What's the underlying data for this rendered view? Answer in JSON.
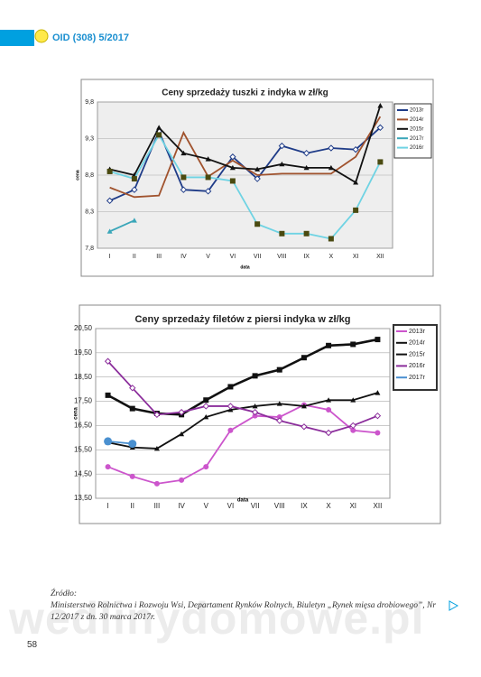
{
  "header": {
    "title": "OID (308) 5/2017"
  },
  "chart_data": [
    {
      "type": "line",
      "title": "Ceny sprzedaży tuszki z indyka w zł/kg",
      "y_label": "cena",
      "x_label": "data",
      "categories": [
        "I",
        "II",
        "III",
        "IV",
        "V",
        "VI",
        "VII",
        "VIII",
        "IX",
        "X",
        "XI",
        "XII"
      ],
      "ylim": [
        7.8,
        9.8
      ],
      "yticks": [
        {
          "value": 7.8,
          "label": "7,8"
        },
        {
          "value": 8.3,
          "label": "8,3"
        },
        {
          "value": 8.8,
          "label": "8,8"
        },
        {
          "value": 9.3,
          "label": "9,3"
        },
        {
          "value": 9.8,
          "label": "9,8"
        }
      ],
      "grid": true,
      "legend": "right",
      "series": [
        {
          "name": "2013r",
          "color": "#1f3c88",
          "marker": "diamond",
          "values": [
            8.45,
            8.6,
            9.4,
            8.6,
            8.58,
            9.05,
            8.75,
            9.2,
            9.1,
            9.17,
            9.15,
            9.45
          ]
        },
        {
          "name": "2014r",
          "color": "#a0522d",
          "marker": "none",
          "values": [
            8.63,
            8.5,
            8.52,
            9.38,
            8.78,
            9.0,
            8.8,
            8.82,
            8.82,
            8.82,
            9.05,
            9.6
          ]
        },
        {
          "name": "2015r",
          "color": "#111111",
          "marker": "triangle",
          "values": [
            8.88,
            8.8,
            9.45,
            9.1,
            9.02,
            8.9,
            8.88,
            8.95,
            8.9,
            8.9,
            8.7,
            9.75
          ]
        },
        {
          "name": "2017r",
          "color": "#3aa6b9",
          "marker": "triangle",
          "values": [
            8.03,
            8.18,
            null,
            null,
            null,
            null,
            null,
            null,
            null,
            null,
            null,
            null
          ]
        },
        {
          "name": "2016r",
          "color": "#6fd3e3",
          "marker": "square",
          "values": [
            8.85,
            8.75,
            9.35,
            8.77,
            8.77,
            8.72,
            8.13,
            8.0,
            8.0,
            7.93,
            8.32,
            8.98
          ]
        }
      ]
    },
    {
      "type": "line",
      "title": "Ceny sprzedaży filetów z  piersi indyka w zł/kg",
      "y_label": "cena",
      "x_label": "data",
      "categories": [
        "I",
        "II",
        "III",
        "IV",
        "V",
        "VI",
        "VII",
        "VIII",
        "IX",
        "X",
        "XI",
        "XII"
      ],
      "ylim": [
        13.5,
        20.5
      ],
      "yticks": [
        {
          "value": 13.5,
          "label": "13,50"
        },
        {
          "value": 14.5,
          "label": "14,50"
        },
        {
          "value": 15.5,
          "label": "15,50"
        },
        {
          "value": 16.5,
          "label": "16,50"
        },
        {
          "value": 17.5,
          "label": "17,50"
        },
        {
          "value": 18.5,
          "label": "18,50"
        },
        {
          "value": 19.5,
          "label": "19,50"
        },
        {
          "value": 20.5,
          "label": "20,50"
        }
      ],
      "grid": true,
      "legend": "right",
      "series": [
        {
          "name": "2013r",
          "color": "#cc55cc",
          "marker": "circle",
          "values": [
            14.8,
            14.4,
            14.1,
            14.25,
            14.8,
            16.3,
            16.9,
            16.85,
            17.35,
            17.15,
            16.3,
            16.2
          ]
        },
        {
          "name": "2014r",
          "color": "#111111",
          "marker": "triangle",
          "values": [
            15.8,
            15.6,
            15.55,
            16.15,
            16.85,
            17.15,
            17.3,
            17.4,
            17.3,
            17.55,
            17.55,
            17.85
          ]
        },
        {
          "name": "2015r",
          "color": "#111111",
          "marker": "square",
          "values": [
            17.75,
            17.2,
            17.0,
            16.95,
            17.55,
            18.1,
            18.55,
            18.8,
            19.3,
            19.8,
            19.85,
            20.05
          ]
        },
        {
          "name": "2016r",
          "color": "#8b2d9b",
          "marker": "diamond",
          "values": [
            19.15,
            18.05,
            16.95,
            17.05,
            17.3,
            17.3,
            17.05,
            16.7,
            16.45,
            16.2,
            16.5,
            16.9
          ]
        },
        {
          "name": "2017r",
          "color": "#4a90d0",
          "marker": "circle",
          "values": [
            15.85,
            15.75,
            null,
            null,
            null,
            null,
            null,
            null,
            null,
            null,
            null,
            null
          ]
        }
      ]
    }
  ],
  "source": {
    "label": "Źródło:",
    "text": "Ministerstwo Rolnictwa i Rozwoju Wsi, Departament Rynków Rolnych, Biuletyn „Rynek mięsa drobiowego”, Nr 12/2017 z dn. 30 marca 2017r."
  },
  "watermark": "wedlinydomowe.pl",
  "page_number": "58"
}
